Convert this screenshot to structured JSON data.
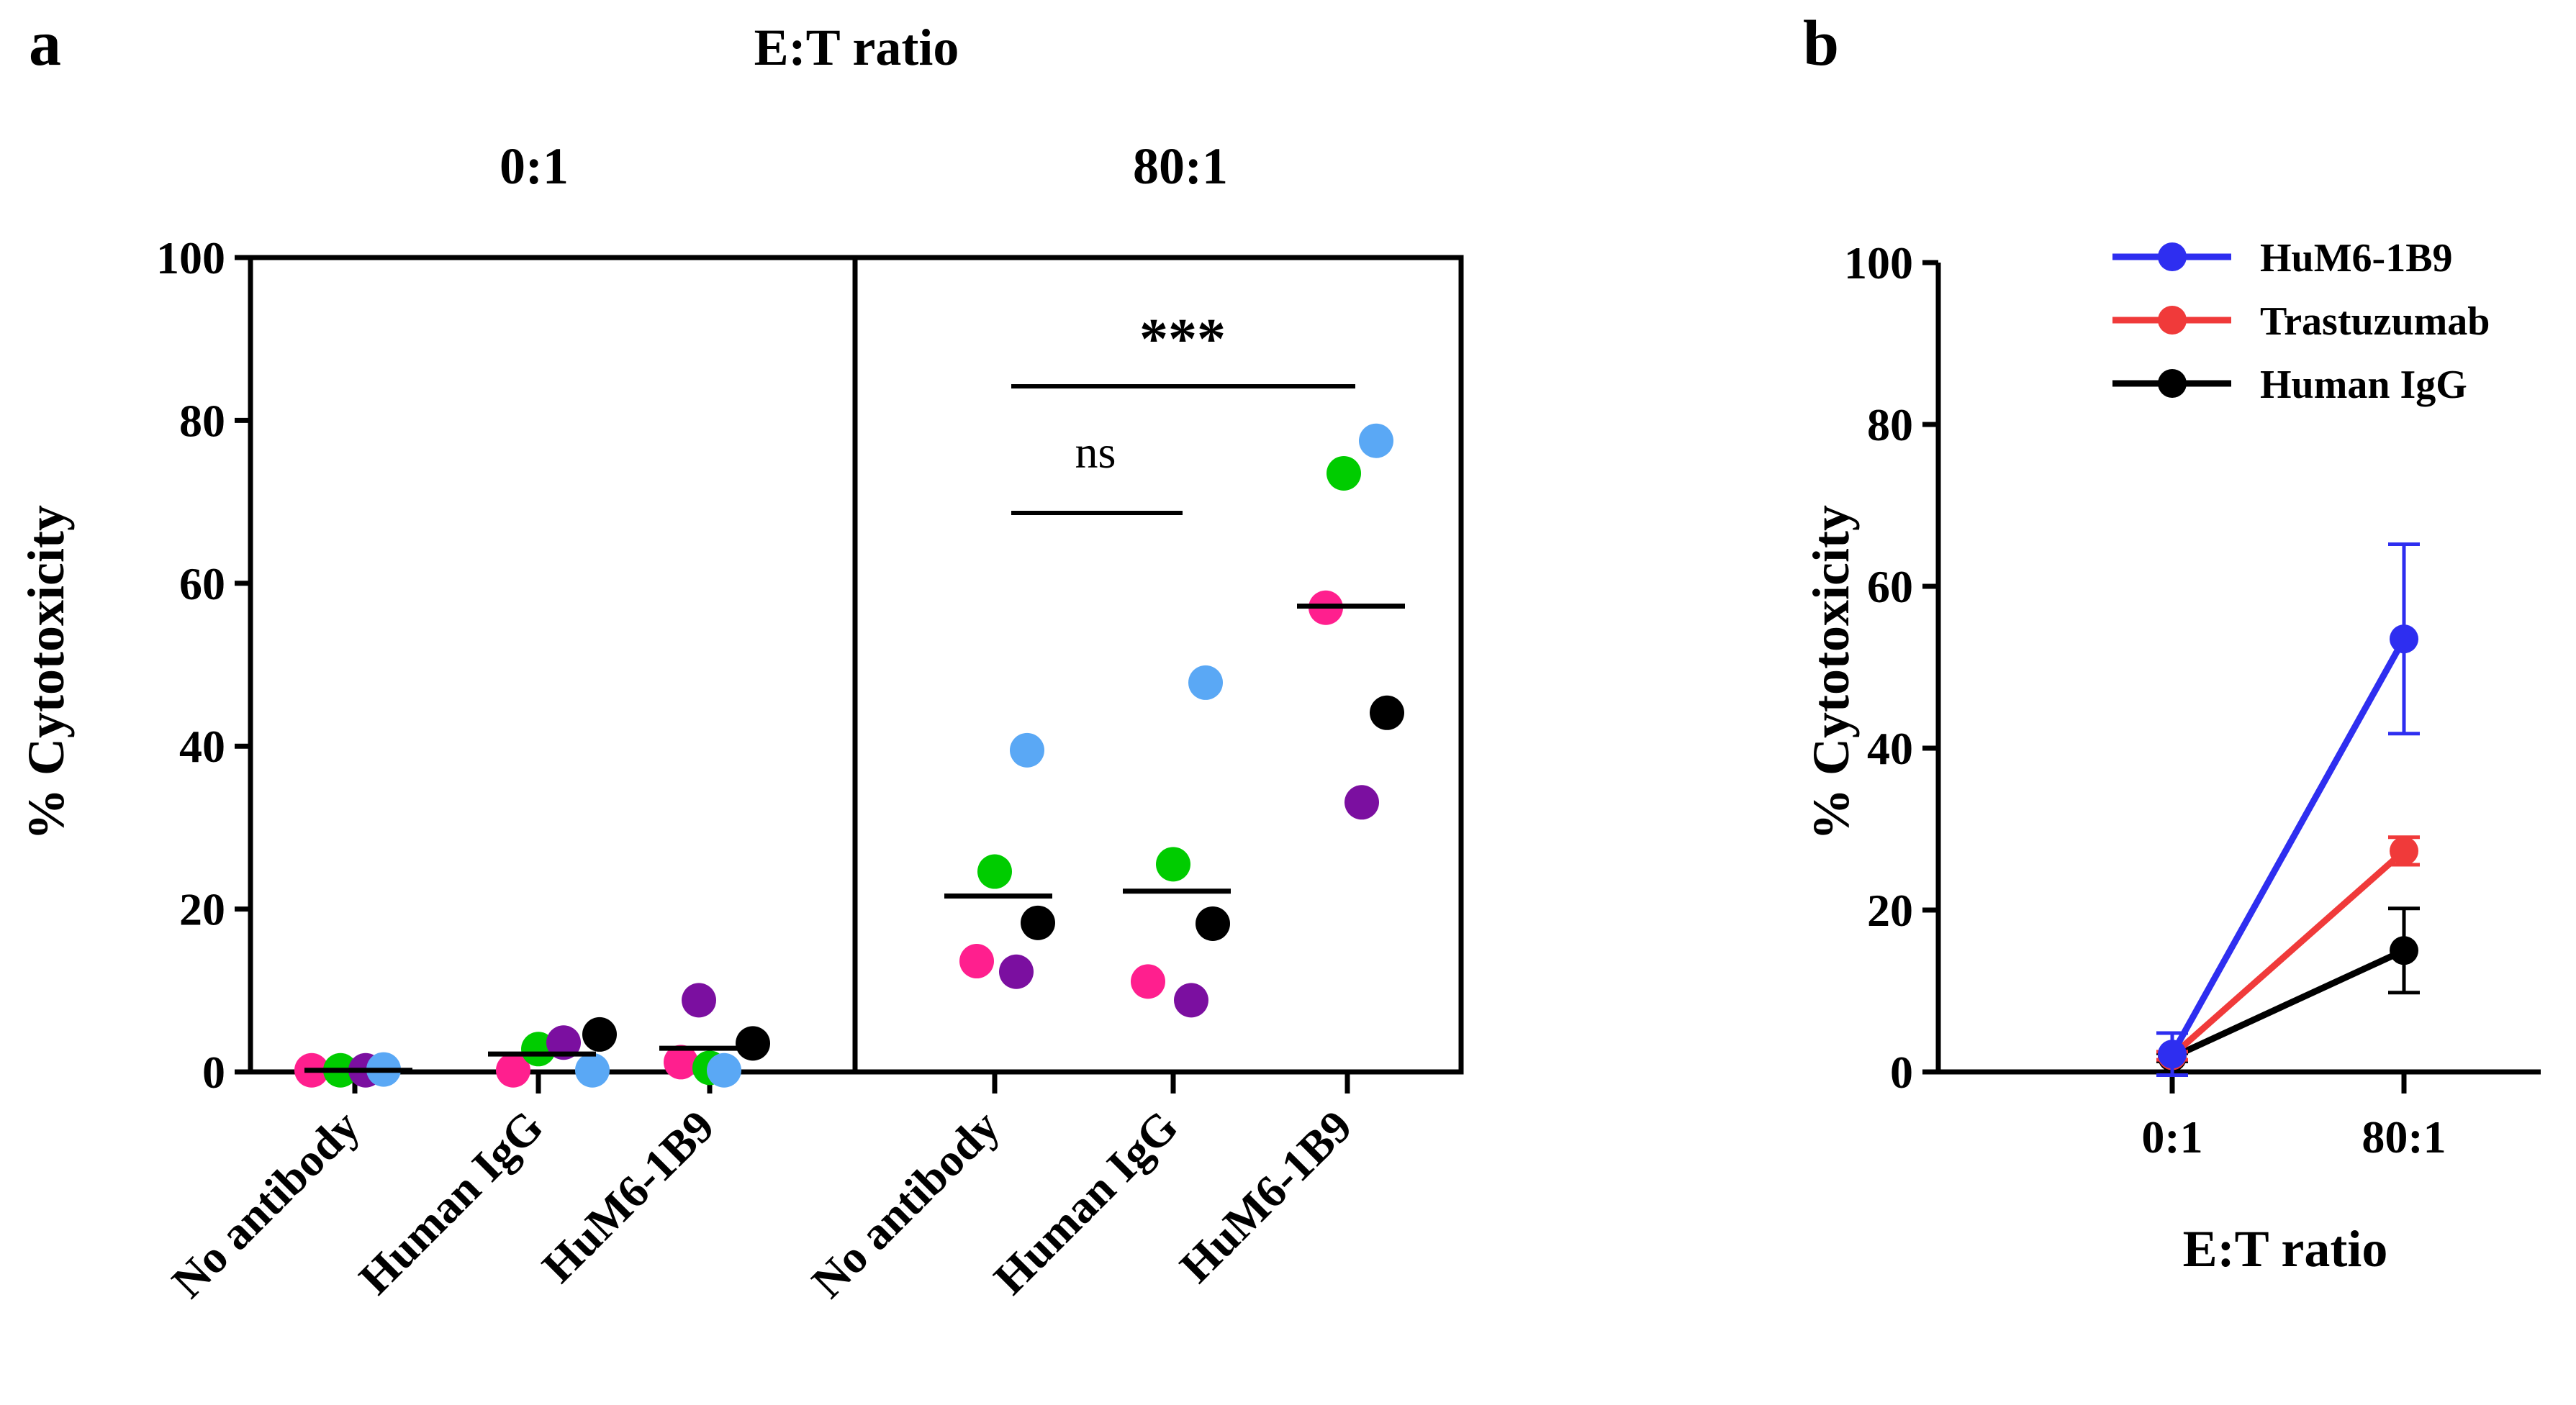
{
  "panels": {
    "a": {
      "label": "a",
      "title": "E:T ratio",
      "groups": [
        "0:1",
        "80:1"
      ],
      "ylabel": "% Cytotoxicity",
      "yticks": [
        "0",
        "20",
        "40",
        "60",
        "80",
        "100"
      ],
      "categories": [
        "No antibody",
        "Human IgG",
        "HuM6-1B9",
        "No antibody",
        "Human IgG",
        "HuM6-1B9"
      ],
      "sig_ns": "ns",
      "sig_stars": "***"
    },
    "b": {
      "label": "b",
      "xlabel": "E:T ratio",
      "ylabel": "% Cytotoxicity",
      "yticks": [
        "0",
        "20",
        "40",
        "60",
        "80",
        "100"
      ],
      "xticks": [
        "0:1",
        "80:1"
      ],
      "legend": [
        "HuM6-1B9",
        "Trastuzumab",
        "Human IgG"
      ]
    }
  },
  "chart_data": [
    {
      "type": "scatter",
      "title": "E:T ratio",
      "ylabel": "% Cytotoxicity",
      "ylim": [
        0,
        100
      ],
      "groups": [
        "0:1",
        "80:1"
      ],
      "categories": [
        "No antibody",
        "Human IgG",
        "HuM6-1B9"
      ],
      "donor_colors": {
        "pink": "#ff1f8e",
        "green": "#00cc00",
        "purple": "#7b0fa0",
        "blue": "#5aa8f5",
        "black": "#000000"
      },
      "points": [
        {
          "group": "0:1",
          "category": "No antibody",
          "values": {
            "pink": 0.2,
            "green": 0.2,
            "purple": 0.2,
            "blue": 0.3
          }
        },
        {
          "group": "0:1",
          "category": "Human IgG",
          "values": {
            "pink": 0.2,
            "green": 2.8,
            "purple": 3.6,
            "blue": 0.2,
            "black": 4.6
          }
        },
        {
          "group": "0:1",
          "category": "HuM6-1B9",
          "values": {
            "pink": 1.2,
            "green": 0.5,
            "purple": 8.8,
            "blue": 0.2,
            "black": 3.5
          }
        },
        {
          "group": "80:1",
          "category": "No antibody",
          "values": {
            "pink": 13.6,
            "green": 24.6,
            "purple": 12.3,
            "blue": 39.5,
            "black": 18.3
          }
        },
        {
          "group": "80:1",
          "category": "Human IgG",
          "values": {
            "pink": 11.1,
            "green": 25.5,
            "purple": 8.8,
            "blue": 47.8,
            "black": 18.2
          }
        },
        {
          "group": "80:1",
          "category": "HuM6-1B9",
          "values": {
            "pink": 57.0,
            "green": 73.5,
            "purple": 33.1,
            "blue": 77.5,
            "black": 44.1
          }
        }
      ],
      "means": [
        0.2,
        2.2,
        2.9,
        21.6,
        22.2,
        57.2
      ],
      "significance": [
        {
          "from": "No antibody",
          "to": "Human IgG",
          "group": "80:1",
          "label": "ns"
        },
        {
          "from": "No antibody",
          "to": "HuM6-1B9",
          "group": "80:1",
          "label": "***"
        }
      ]
    },
    {
      "type": "line",
      "xlabel": "E:T ratio",
      "ylabel": "% Cytotoxicity",
      "ylim": [
        0,
        100
      ],
      "x": [
        "0:1",
        "80:1"
      ],
      "series": [
        {
          "name": "HuM6-1B9",
          "color": "#2e2ef0",
          "values": [
            2.2,
            53.5
          ],
          "err": [
            2.6,
            11.7
          ]
        },
        {
          "name": "Trastuzumab",
          "color": "#f03a3a",
          "values": [
            2.0,
            27.3
          ],
          "err": [
            0.5,
            1.7
          ]
        },
        {
          "name": "Human IgG",
          "color": "#000000",
          "values": [
            1.8,
            15.0
          ],
          "err": [
            0.5,
            5.2
          ]
        }
      ],
      "legend_position": "top-right"
    }
  ]
}
